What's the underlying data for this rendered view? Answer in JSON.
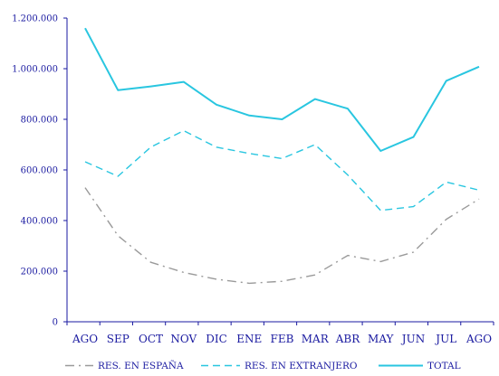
{
  "chart_data": {
    "type": "line",
    "title": "",
    "xlabel": "",
    "ylabel": "",
    "categories": [
      "AGO",
      "SEP",
      "OCT",
      "NOV",
      "DIC",
      "ENE",
      "FEB",
      "MAR",
      "ABR",
      "MAY",
      "JUN",
      "JUL",
      "AGO"
    ],
    "ylim": [
      0,
      1200000
    ],
    "yticks": [
      0,
      200000,
      400000,
      600000,
      800000,
      1000000,
      1200000
    ],
    "ytick_labels": [
      "0",
      "200.000",
      "400.000",
      "600.000",
      "800.000",
      "1.000.000",
      "1.200.000"
    ],
    "grid": false,
    "legend_position": "bottom",
    "series": [
      {
        "name": "RES. EN ESPAÑA",
        "color": "#9a9a9a",
        "style": "dash-dot",
        "values": [
          530000,
          340000,
          235000,
          195000,
          168000,
          152000,
          160000,
          185000,
          262000,
          238000,
          275000,
          405000,
          485000
        ]
      },
      {
        "name": "RES. EN EXTRANJERO",
        "color": "#29c6e0",
        "style": "dashed",
        "values": [
          632000,
          575000,
          690000,
          755000,
          690000,
          665000,
          645000,
          700000,
          580000,
          440000,
          455000,
          552000,
          520000
        ]
      },
      {
        "name": "TOTAL",
        "color": "#29c6e0",
        "style": "solid",
        "values": [
          1160000,
          915000,
          930000,
          948000,
          858000,
          815000,
          800000,
          880000,
          842000,
          675000,
          730000,
          952000,
          1008000
        ]
      }
    ]
  }
}
